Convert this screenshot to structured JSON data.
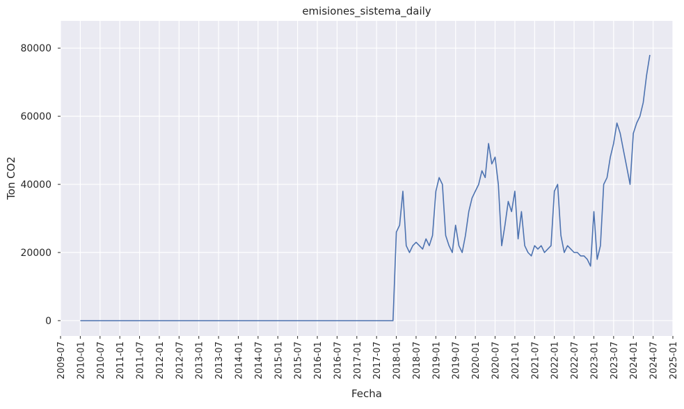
{
  "chart_data": {
    "type": "line",
    "title": "emisiones_sistema_daily",
    "xlabel": "Fecha",
    "ylabel": "Ton CO2",
    "grid": true,
    "legend": "none",
    "xlim": [
      "2009-07",
      "2025-01"
    ],
    "ylim": [
      -4500,
      88000
    ],
    "x_ticks": [
      "2009-07",
      "2010-01",
      "2010-07",
      "2011-01",
      "2011-07",
      "2012-01",
      "2012-07",
      "2013-01",
      "2013-07",
      "2014-01",
      "2014-07",
      "2015-01",
      "2015-07",
      "2016-01",
      "2016-07",
      "2017-01",
      "2017-07",
      "2018-01",
      "2018-07",
      "2019-01",
      "2019-07",
      "2020-01",
      "2020-07",
      "2021-01",
      "2021-07",
      "2022-01",
      "2022-07",
      "2023-01",
      "2023-07",
      "2024-01",
      "2024-07",
      "2025-01"
    ],
    "y_ticks": [
      0,
      20000,
      40000,
      60000,
      80000
    ],
    "y_tick_labels": [
      "0",
      "20000",
      "40000",
      "60000",
      "80000"
    ],
    "series": [
      {
        "color": "#4c72b0",
        "x": [
          "2010-01",
          "2017-12",
          "2018-01",
          "2018-02",
          "2018-03",
          "2018-04",
          "2018-05",
          "2018-06",
          "2018-07",
          "2018-08",
          "2018-09",
          "2018-10",
          "2018-11",
          "2018-12",
          "2019-01",
          "2019-02",
          "2019-03",
          "2019-04",
          "2019-05",
          "2019-06",
          "2019-07",
          "2019-08",
          "2019-09",
          "2019-10",
          "2019-11",
          "2019-12",
          "2020-01",
          "2020-02",
          "2020-03",
          "2020-04",
          "2020-05",
          "2020-06",
          "2020-07",
          "2020-08",
          "2020-09",
          "2020-10",
          "2020-11",
          "2020-12",
          "2021-01",
          "2021-02",
          "2021-03",
          "2021-04",
          "2021-05",
          "2021-06",
          "2021-07",
          "2021-08",
          "2021-09",
          "2021-10",
          "2021-11",
          "2021-12",
          "2022-01",
          "2022-02",
          "2022-03",
          "2022-04",
          "2022-05",
          "2022-06",
          "2022-07",
          "2022-08",
          "2022-09",
          "2022-10",
          "2022-11",
          "2022-12",
          "2023-01",
          "2023-02",
          "2023-03",
          "2023-04",
          "2023-05",
          "2023-06",
          "2023-07",
          "2023-08",
          "2023-09",
          "2023-10",
          "2023-11",
          "2023-12",
          "2024-01",
          "2024-02",
          "2024-03",
          "2024-04",
          "2024-05",
          "2024-06"
        ],
        "y": [
          0,
          0,
          26000,
          28000,
          38000,
          22000,
          20000,
          22000,
          23000,
          22000,
          21000,
          24000,
          22000,
          25000,
          38000,
          42000,
          40000,
          25000,
          22000,
          20000,
          28000,
          22000,
          20000,
          25000,
          32000,
          36000,
          38000,
          40000,
          44000,
          42000,
          52000,
          46000,
          48000,
          40000,
          22000,
          28000,
          35000,
          32000,
          38000,
          24000,
          32000,
          22000,
          20000,
          19000,
          22000,
          21000,
          22000,
          20000,
          21000,
          22000,
          38000,
          40000,
          25000,
          20000,
          22000,
          21000,
          20000,
          20000,
          19000,
          19000,
          18000,
          16000,
          32000,
          18000,
          22000,
          40000,
          42000,
          48000,
          52000,
          58000,
          55000,
          50000,
          45000,
          40000,
          55000,
          58000,
          60000,
          64000,
          72000,
          78000
        ]
      }
    ]
  }
}
